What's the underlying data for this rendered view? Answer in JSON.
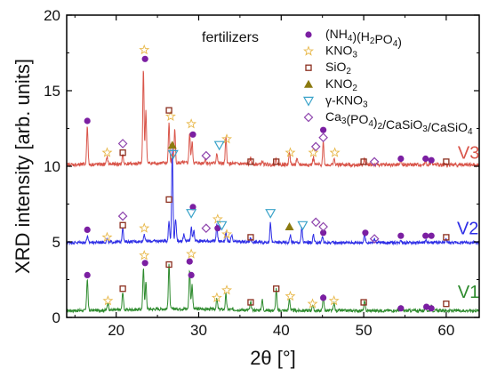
{
  "chart_data": {
    "type": "line",
    "title": "fertilizers",
    "xlabel": "2θ [°]",
    "ylabel": "XRD intensity [arb. units]",
    "xlim": [
      14,
      64
    ],
    "ylim": [
      0,
      20
    ],
    "xticks": [
      20,
      30,
      40,
      50,
      60
    ],
    "yticks": [
      0,
      5,
      10,
      15,
      20
    ],
    "grid": false,
    "legend_position": "top-right",
    "legend": [
      {
        "symbol": "circle",
        "color": "#7B1FA2",
        "label": "(NH4)(H2PO4)",
        "parts": [
          [
            "(NH",
            ""
          ],
          [
            "4",
            "sub"
          ],
          [
            ")(H",
            ""
          ],
          [
            "2",
            "sub"
          ],
          [
            "PO",
            ""
          ],
          [
            "4",
            "sub"
          ],
          [
            ")",
            ""
          ]
        ]
      },
      {
        "symbol": "star",
        "color": "#E8B84A",
        "label": "KNO3",
        "parts": [
          [
            "KNO",
            ""
          ],
          [
            "3",
            "sub"
          ]
        ]
      },
      {
        "symbol": "square",
        "color": "#8B2E1E",
        "label": "SiO2",
        "parts": [
          [
            "SiO",
            ""
          ],
          [
            "2",
            "sub"
          ]
        ]
      },
      {
        "symbol": "triangle",
        "color": "#8B7A10",
        "label": "KNO2",
        "parts": [
          [
            "KNO",
            ""
          ],
          [
            "2",
            "sub"
          ]
        ]
      },
      {
        "symbol": "triangle-down",
        "color": "#3AA3C9",
        "label": "γ-KNO3",
        "parts": [
          [
            "γ-KNO",
            ""
          ],
          [
            "3",
            "sub"
          ]
        ]
      },
      {
        "symbol": "diamond",
        "color": "#8E44AD",
        "label": "Ca3(PO4)2/CaSiO3/CaSiO4",
        "parts": [
          [
            "Ca",
            ""
          ],
          [
            "3",
            "sub"
          ],
          [
            "(PO",
            ""
          ],
          [
            "4",
            "sub"
          ],
          [
            ")",
            ""
          ],
          [
            "2",
            "sub"
          ],
          [
            "/CaSiO",
            ""
          ],
          [
            "3",
            "sub"
          ],
          [
            "/CaSiO",
            ""
          ],
          [
            "4",
            "sub"
          ]
        ]
      }
    ],
    "series": [
      {
        "name": "V1",
        "color": "#2E8B2E",
        "baseline": 0.45,
        "noise": 0.1,
        "peaks": [
          [
            16.5,
            2.1
          ],
          [
            19.0,
            0.5
          ],
          [
            20.8,
            1.2
          ],
          [
            23.3,
            2.7
          ],
          [
            23.6,
            1.8
          ],
          [
            26.4,
            3.0
          ],
          [
            28.9,
            2.6
          ],
          [
            29.2,
            1.6
          ],
          [
            32.2,
            0.7
          ],
          [
            33.3,
            1.0
          ],
          [
            36.3,
            0.5
          ],
          [
            37.7,
            0.7
          ],
          [
            39.4,
            1.4
          ],
          [
            41.0,
            0.8
          ],
          [
            43.8,
            0.4
          ],
          [
            45.1,
            1.0
          ],
          [
            46.4,
            0.5
          ],
          [
            50.1,
            0.6
          ],
          [
            54.5,
            0.3
          ],
          [
            57.5,
            0.3
          ],
          [
            58.2,
            0.3
          ]
        ],
        "markers": [
          {
            "x": 16.5,
            "y": 2.8,
            "m": "circle"
          },
          {
            "x": 23.5,
            "y": 3.6,
            "m": "circle"
          },
          {
            "x": 28.9,
            "y": 3.7,
            "m": "circle"
          },
          {
            "x": 29.1,
            "y": 2.8,
            "m": "circle"
          },
          {
            "x": 45.1,
            "y": 1.3,
            "m": "circle"
          },
          {
            "x": 54.5,
            "y": 0.6,
            "m": "circle"
          },
          {
            "x": 57.6,
            "y": 0.7,
            "m": "circle"
          },
          {
            "x": 58.2,
            "y": 0.6,
            "m": "circle"
          },
          {
            "x": 19.0,
            "y": 1.1,
            "m": "star"
          },
          {
            "x": 23.4,
            "y": 4.1,
            "m": "star"
          },
          {
            "x": 29.1,
            "y": 4.2,
            "m": "star"
          },
          {
            "x": 32.2,
            "y": 1.3,
            "m": "star"
          },
          {
            "x": 33.4,
            "y": 1.8,
            "m": "star"
          },
          {
            "x": 41.1,
            "y": 1.4,
            "m": "star"
          },
          {
            "x": 43.8,
            "y": 0.9,
            "m": "star"
          },
          {
            "x": 46.4,
            "y": 1.1,
            "m": "star"
          },
          {
            "x": 20.8,
            "y": 1.9,
            "m": "square"
          },
          {
            "x": 26.4,
            "y": 3.5,
            "m": "square"
          },
          {
            "x": 36.3,
            "y": 1.0,
            "m": "square"
          },
          {
            "x": 39.4,
            "y": 1.9,
            "m": "square"
          },
          {
            "x": 50.0,
            "y": 1.0,
            "m": "square"
          },
          {
            "x": 60.0,
            "y": 0.9,
            "m": "square"
          }
        ],
        "label_x": 61.4,
        "label_y": 1.3
      },
      {
        "name": "V2",
        "color": "#2E2EE6",
        "baseline": 4.95,
        "noise": 0.1,
        "peaks": [
          [
            16.5,
            0.4
          ],
          [
            18.9,
            0.2
          ],
          [
            20.8,
            1.0
          ],
          [
            23.4,
            0.5
          ],
          [
            26.4,
            1.3
          ],
          [
            26.8,
            6.0
          ],
          [
            27.2,
            1.5
          ],
          [
            28.2,
            0.4
          ],
          [
            29.1,
            0.9
          ],
          [
            29.4,
            0.7
          ],
          [
            32.2,
            1.1
          ],
          [
            33.3,
            0.6
          ],
          [
            34.0,
            0.4
          ],
          [
            36.3,
            0.3
          ],
          [
            38.7,
            1.3
          ],
          [
            41.1,
            0.5
          ],
          [
            42.5,
            1.0
          ],
          [
            43.9,
            0.5
          ],
          [
            45.0,
            0.4
          ],
          [
            50.1,
            0.6
          ],
          [
            51.3,
            0.3
          ],
          [
            54.5,
            0.2
          ],
          [
            57.5,
            0.2
          ],
          [
            60.0,
            0.2
          ]
        ],
        "markers": [
          {
            "x": 16.5,
            "y": 5.8,
            "m": "circle"
          },
          {
            "x": 29.3,
            "y": 7.3,
            "m": "circle"
          },
          {
            "x": 32.3,
            "y": 5.9,
            "m": "circle"
          },
          {
            "x": 45.1,
            "y": 5.6,
            "m": "circle"
          },
          {
            "x": 50.2,
            "y": 5.6,
            "m": "circle"
          },
          {
            "x": 54.5,
            "y": 5.4,
            "m": "circle"
          },
          {
            "x": 57.5,
            "y": 5.4,
            "m": "circle"
          },
          {
            "x": 58.2,
            "y": 5.4,
            "m": "circle"
          },
          {
            "x": 18.9,
            "y": 5.3,
            "m": "star"
          },
          {
            "x": 23.4,
            "y": 5.9,
            "m": "star"
          },
          {
            "x": 32.3,
            "y": 6.5,
            "m": "star"
          },
          {
            "x": 33.4,
            "y": 5.5,
            "m": "star"
          },
          {
            "x": 20.8,
            "y": 6.1,
            "m": "square"
          },
          {
            "x": 26.4,
            "y": 7.8,
            "m": "square"
          },
          {
            "x": 36.3,
            "y": 5.3,
            "m": "square"
          },
          {
            "x": 60.0,
            "y": 5.3,
            "m": "square"
          },
          {
            "x": 41.0,
            "y": 6.0,
            "m": "triangle"
          },
          {
            "x": 29.1,
            "y": 6.9,
            "m": "triangle-down"
          },
          {
            "x": 32.8,
            "y": 6.1,
            "m": "triangle-down"
          },
          {
            "x": 38.7,
            "y": 6.9,
            "m": "triangle-down"
          },
          {
            "x": 42.6,
            "y": 6.1,
            "m": "triangle-down"
          },
          {
            "x": 20.8,
            "y": 6.7,
            "m": "diamond"
          },
          {
            "x": 30.9,
            "y": 5.9,
            "m": "diamond"
          },
          {
            "x": 44.2,
            "y": 6.3,
            "m": "diamond"
          },
          {
            "x": 45.1,
            "y": 6.0,
            "m": "diamond"
          },
          {
            "x": 51.3,
            "y": 5.2,
            "m": "diamond"
          }
        ],
        "label_x": 61.3,
        "label_y": 5.5
      },
      {
        "name": "V3",
        "color": "#D9554A",
        "baseline": 10.1,
        "noise": 0.12,
        "peaks": [
          [
            16.5,
            2.6
          ],
          [
            18.9,
            0.5
          ],
          [
            20.8,
            0.6
          ],
          [
            23.3,
            6.3
          ],
          [
            23.6,
            3.5
          ],
          [
            26.4,
            2.6
          ],
          [
            26.8,
            0.6
          ],
          [
            27.1,
            2.2
          ],
          [
            28.9,
            2.0
          ],
          [
            29.2,
            1.4
          ],
          [
            30.8,
            0.3
          ],
          [
            32.2,
            0.7
          ],
          [
            33.3,
            1.7
          ],
          [
            36.3,
            0.4
          ],
          [
            37.7,
            0.2
          ],
          [
            39.4,
            0.4
          ],
          [
            41.0,
            0.9
          ],
          [
            41.9,
            0.4
          ],
          [
            43.9,
            0.5
          ],
          [
            45.1,
            1.5
          ],
          [
            46.4,
            0.4
          ],
          [
            50.1,
            0.4
          ],
          [
            54.5,
            0.3
          ],
          [
            57.5,
            0.3
          ],
          [
            58.2,
            0.3
          ]
        ],
        "markers": [
          {
            "x": 16.5,
            "y": 13.0,
            "m": "circle"
          },
          {
            "x": 23.5,
            "y": 17.1,
            "m": "circle"
          },
          {
            "x": 29.3,
            "y": 12.1,
            "m": "circle"
          },
          {
            "x": 45.1,
            "y": 12.4,
            "m": "circle"
          },
          {
            "x": 54.5,
            "y": 10.5,
            "m": "circle"
          },
          {
            "x": 57.5,
            "y": 10.5,
            "m": "circle"
          },
          {
            "x": 58.2,
            "y": 10.4,
            "m": "circle"
          },
          {
            "x": 18.9,
            "y": 10.9,
            "m": "star"
          },
          {
            "x": 23.4,
            "y": 17.7,
            "m": "star"
          },
          {
            "x": 26.6,
            "y": 13.3,
            "m": "star"
          },
          {
            "x": 29.1,
            "y": 12.8,
            "m": "star"
          },
          {
            "x": 33.4,
            "y": 11.8,
            "m": "star"
          },
          {
            "x": 41.1,
            "y": 10.9,
            "m": "star"
          },
          {
            "x": 43.9,
            "y": 10.9,
            "m": "star"
          },
          {
            "x": 46.5,
            "y": 10.9,
            "m": "star"
          },
          {
            "x": 20.8,
            "y": 10.9,
            "m": "square"
          },
          {
            "x": 26.4,
            "y": 13.7,
            "m": "square"
          },
          {
            "x": 36.3,
            "y": 10.3,
            "m": "square"
          },
          {
            "x": 39.4,
            "y": 10.3,
            "m": "square"
          },
          {
            "x": 50.0,
            "y": 10.3,
            "m": "square"
          },
          {
            "x": 60.0,
            "y": 10.3,
            "m": "square"
          },
          {
            "x": 26.8,
            "y": 11.4,
            "m": "triangle"
          },
          {
            "x": 26.9,
            "y": 10.8,
            "m": "triangle-down"
          },
          {
            "x": 32.5,
            "y": 11.4,
            "m": "triangle-down"
          },
          {
            "x": 20.8,
            "y": 11.5,
            "m": "diamond"
          },
          {
            "x": 30.9,
            "y": 10.7,
            "m": "diamond"
          },
          {
            "x": 44.2,
            "y": 11.3,
            "m": "diamond"
          },
          {
            "x": 45.1,
            "y": 11.9,
            "m": "diamond"
          },
          {
            "x": 51.3,
            "y": 10.3,
            "m": "diamond"
          }
        ],
        "label_x": 61.4,
        "label_y": 10.5
      }
    ]
  }
}
